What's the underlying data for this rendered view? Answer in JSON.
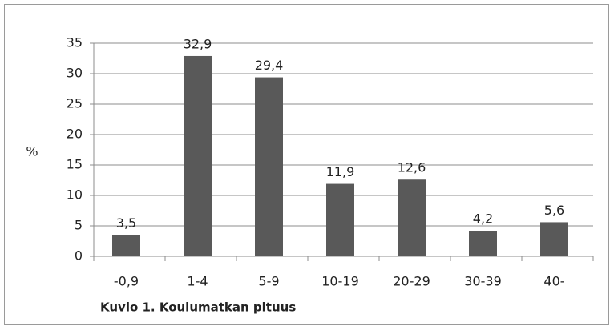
{
  "chart_data": {
    "type": "bar",
    "caption": "Kuvio 1. Koulumatkan pituus",
    "y_label": "%",
    "categories": [
      "-0,9",
      "1-4",
      "5-9",
      "10-19",
      "20-29",
      "30-39",
      "40-"
    ],
    "values": [
      3.5,
      32.9,
      29.4,
      11.9,
      12.6,
      4.2,
      5.6
    ],
    "value_labels": [
      "3,5",
      "32,9",
      "29,4",
      "11,9",
      "12,6",
      "4,2",
      "5,6"
    ],
    "color": "#595959",
    "ylim": [
      0,
      35
    ],
    "yticks": [
      0,
      5,
      10,
      15,
      20,
      25,
      30,
      35
    ],
    "grid": true
  }
}
